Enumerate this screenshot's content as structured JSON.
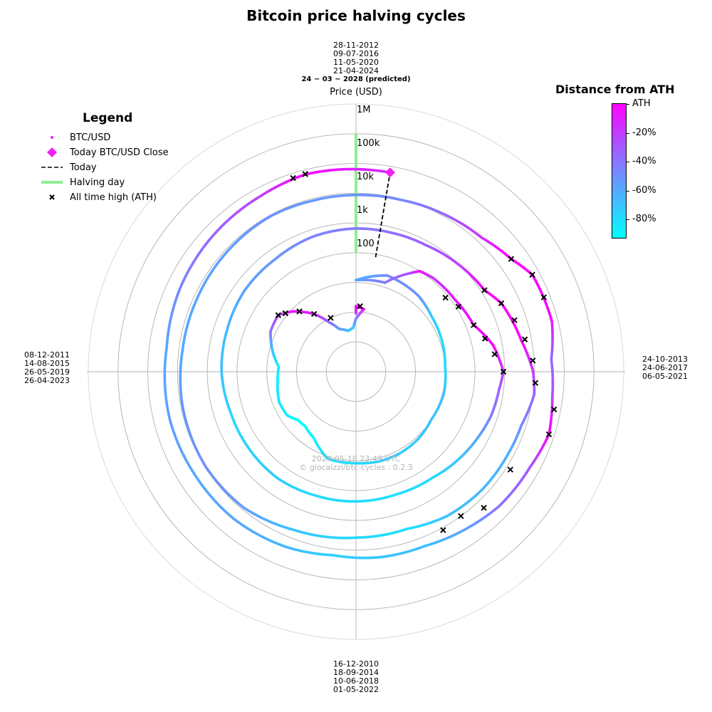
{
  "title": "Bitcoin price halving cycles",
  "date_labels": {
    "top": [
      "28-11-2012",
      "09-07-2016",
      "11-05-2020",
      "21-04-2024"
    ],
    "top_predicted": "24 − 03 − 2028 (predicted)",
    "right": [
      "24-10-2013",
      "24-06-2017",
      "06-05-2021"
    ],
    "bottom": [
      "16-12-2010",
      "18-09-2014",
      "10-06-2018",
      "01-05-2022"
    ],
    "left": [
      "08-12-2011",
      "14-08-2015",
      "26-05-2019",
      "26-04-2023"
    ]
  },
  "legend": {
    "title": "Legend",
    "items": [
      {
        "label": "BTC/USD",
        "marker": "dot",
        "color": "#ee22ee"
      },
      {
        "label": "Today BTC/USD Close",
        "marker": "diamond",
        "color": "#ee22ee"
      },
      {
        "label": "Today",
        "marker": "dashed-line",
        "color": "#000000"
      },
      {
        "label": "Halving day",
        "marker": "line",
        "color": "#90ee90"
      },
      {
        "label": "All time high (ATH)",
        "marker": "x",
        "color": "#000000"
      }
    ]
  },
  "colorbar": {
    "title": "Distance from ATH",
    "ticks": [
      "ATH",
      "-20%",
      "-40%",
      "-60%",
      "-80%"
    ],
    "tick_values": [
      0,
      -20,
      -40,
      -60,
      -80
    ],
    "min": -93,
    "max": 0,
    "colors": [
      "#00ffff",
      "#ff00ff"
    ]
  },
  "watermark": [
    "2024-05-18 23:49 UTC",
    "© giocaizzi/btc-cycles : 0.2.3"
  ],
  "chart_data": {
    "type": "scatter",
    "projection": "polar",
    "title": "Bitcoin price halving cycles",
    "radial_axis": {
      "label": "Price (USD)",
      "scale": "log",
      "tick_labels": [
        "100",
        "1k",
        "10k",
        "100k",
        "1M"
      ],
      "tick_values": [
        100,
        1000,
        10000,
        100000,
        1000000
      ],
      "range": [
        0.01,
        10000000
      ]
    },
    "angular_axis": {
      "unit": "fraction of halving cycle (clockwise from top = halving day)"
    },
    "grid": true,
    "legend_position": "upper-left",
    "halving_day": {
      "angle": 0,
      "price_range": [
        100,
        1000000
      ],
      "color": "#90ee90"
    },
    "today": {
      "angle": 0.027,
      "close": 62000,
      "date": "2024-05-18"
    },
    "series": [
      {
        "name": "BTC/USD",
        "cycles": [
          {
            "cycle": 1,
            "points": [
              {
                "angle": 0.0,
                "price": 0.9,
                "dist_ath": -30
              },
              {
                "angle": 0.0,
                "price": 1.6,
                "dist_ath": 0
              },
              {
                "angle": 0.02,
                "price": 1.3,
                "dist_ath": -5
              },
              {
                "angle": 0.0,
                "price": 0.6,
                "dist_ath": -45
              },
              {
                "angle": 0.99,
                "price": 0.3,
                "dist_ath": -70
              },
              {
                "angle": 0.97,
                "price": 0.25,
                "dist_ath": -72
              },
              {
                "angle": 0.94,
                "price": 0.35,
                "dist_ath": -60
              },
              {
                "angle": 0.92,
                "price": 0.8,
                "dist_ath": -40
              },
              {
                "angle": 0.9,
                "price": 2.5,
                "dist_ath": -15
              },
              {
                "angle": 0.87,
                "price": 9,
                "dist_ath": -5
              },
              {
                "angle": 0.85,
                "price": 17,
                "dist_ath": -25
              },
              {
                "angle": 0.82,
                "price": 15,
                "dist_ath": -40
              },
              {
                "angle": 0.79,
                "price": 8,
                "dist_ath": -70
              },
              {
                "angle": 0.76,
                "price": 4,
                "dist_ath": -85
              },
              {
                "angle": 0.73,
                "price": 4.5,
                "dist_ath": -88
              },
              {
                "angle": 0.69,
                "price": 6,
                "dist_ath": -85
              },
              {
                "angle": 0.66,
                "price": 5.5,
                "dist_ath": -87
              },
              {
                "angle": 0.64,
                "price": 3.5,
                "dist_ath": -92
              },
              {
                "angle": 0.62,
                "price": 3.2,
                "dist_ath": -93
              },
              {
                "angle": 0.59,
                "price": 4.4,
                "dist_ath": -90
              },
              {
                "angle": 0.55,
                "price": 12,
                "dist_ath": -80
              },
              {
                "angle": 0.5,
                "price": 12,
                "dist_ath": -80
              },
              {
                "angle": 0.46,
                "price": 13,
                "dist_ath": -75
              },
              {
                "angle": 0.42,
                "price": 13,
                "dist_ath": -74
              },
              {
                "angle": 0.38,
                "price": 12,
                "dist_ath": -74
              },
              {
                "angle": 0.34,
                "price": 10,
                "dist_ath": -70
              },
              {
                "angle": 0.29,
                "price": 11,
                "dist_ath": -70
              },
              {
                "angle": 0.24,
                "price": 10,
                "dist_ath": -80
              },
              {
                "angle": 0.19,
                "price": 12,
                "dist_ath": -80
              },
              {
                "angle": 0.15,
                "price": 14,
                "dist_ath": -75
              },
              {
                "angle": 0.11,
                "price": 20,
                "dist_ath": -55
              },
              {
                "angle": 0.05,
                "price": 25,
                "dist_ath": -50
              },
              {
                "angle": 0.0,
                "price": 12,
                "dist_ath": -65
              }
            ]
          },
          {
            "cycle": 2,
            "points": [
              {
                "angle": 0.0,
                "price": 12,
                "dist_ath": -60
              },
              {
                "angle": 0.05,
                "price": 14,
                "dist_ath": -45
              },
              {
                "angle": 0.08,
                "price": 60,
                "dist_ath": -30
              },
              {
                "angle": 0.09,
                "price": 100,
                "dist_ath": -5
              },
              {
                "angle": 0.11,
                "price": 120,
                "dist_ath": -20
              },
              {
                "angle": 0.15,
                "price": 130,
                "dist_ath": -10
              },
              {
                "angle": 0.19,
                "price": 180,
                "dist_ath": -5
              },
              {
                "angle": 0.22,
                "price": 500,
                "dist_ath": 0
              },
              {
                "angle": 0.25,
                "price": 900,
                "dist_ath": -20
              },
              {
                "angle": 0.27,
                "price": 700,
                "dist_ath": -35
              },
              {
                "angle": 0.3,
                "price": 600,
                "dist_ath": -45
              },
              {
                "angle": 0.33,
                "price": 450,
                "dist_ath": -60
              },
              {
                "angle": 0.36,
                "price": 350,
                "dist_ath": -70
              },
              {
                "angle": 0.4,
                "price": 250,
                "dist_ath": -78
              },
              {
                "angle": 0.45,
                "price": 220,
                "dist_ath": -82
              },
              {
                "angle": 0.5,
                "price": 230,
                "dist_ath": -80
              },
              {
                "angle": 0.55,
                "price": 240,
                "dist_ath": -80
              },
              {
                "angle": 0.6,
                "price": 280,
                "dist_ath": -75
              },
              {
                "angle": 0.65,
                "price": 270,
                "dist_ath": -76
              },
              {
                "angle": 0.7,
                "price": 270,
                "dist_ath": -78
              },
              {
                "angle": 0.75,
                "price": 330,
                "dist_ath": -70
              },
              {
                "angle": 0.8,
                "price": 360,
                "dist_ath": -68
              },
              {
                "angle": 0.85,
                "price": 430,
                "dist_ath": -60
              },
              {
                "angle": 0.9,
                "price": 450,
                "dist_ath": -55
              },
              {
                "angle": 0.95,
                "price": 580,
                "dist_ath": -48
              },
              {
                "angle": 1.0,
                "price": 650,
                "dist_ath": -45
              }
            ]
          },
          {
            "cycle": 3,
            "points": [
              {
                "angle": 0.0,
                "price": 650,
                "dist_ath": -45
              },
              {
                "angle": 0.04,
                "price": 660,
                "dist_ath": -40
              },
              {
                "angle": 0.08,
                "price": 720,
                "dist_ath": -35
              },
              {
                "angle": 0.12,
                "price": 960,
                "dist_ath": -25
              },
              {
                "angle": 0.16,
                "price": 1300,
                "dist_ath": 0
              },
              {
                "angle": 0.18,
                "price": 2500,
                "dist_ath": 0
              },
              {
                "angle": 0.22,
                "price": 4500,
                "dist_ath": 0
              },
              {
                "angle": 0.25,
                "price": 9000,
                "dist_ath": -20
              },
              {
                "angle": 0.27,
                "price": 11000,
                "dist_ath": -35
              },
              {
                "angle": 0.3,
                "price": 7000,
                "dist_ath": -50
              },
              {
                "angle": 0.33,
                "price": 6500,
                "dist_ath": -65
              },
              {
                "angle": 0.37,
                "price": 6400,
                "dist_ath": -67
              },
              {
                "angle": 0.41,
                "price": 5500,
                "dist_ath": -70
              },
              {
                "angle": 0.45,
                "price": 3600,
                "dist_ath": -82
              },
              {
                "angle": 0.5,
                "price": 3800,
                "dist_ath": -80
              },
              {
                "angle": 0.56,
                "price": 5200,
                "dist_ath": -72
              },
              {
                "angle": 0.61,
                "price": 8500,
                "dist_ath": -58
              },
              {
                "angle": 0.66,
                "price": 9500,
                "dist_ath": -52
              },
              {
                "angle": 0.72,
                "price": 8800,
                "dist_ath": -55
              },
              {
                "angle": 0.77,
                "price": 7500,
                "dist_ath": -62
              },
              {
                "angle": 0.82,
                "price": 7600,
                "dist_ath": -61
              },
              {
                "angle": 0.87,
                "price": 8300,
                "dist_ath": -58
              },
              {
                "angle": 0.92,
                "price": 9200,
                "dist_ath": -53
              },
              {
                "angle": 0.96,
                "price": 8500,
                "dist_ath": -56
              },
              {
                "angle": 1.0,
                "price": 8700,
                "dist_ath": -55
              }
            ]
          },
          {
            "cycle": 4,
            "points": [
              {
                "angle": 0.0,
                "price": 8700,
                "dist_ath": -55
              },
              {
                "angle": 0.04,
                "price": 9300,
                "dist_ath": -50
              },
              {
                "angle": 0.08,
                "price": 11500,
                "dist_ath": -40
              },
              {
                "angle": 0.12,
                "price": 15000,
                "dist_ath": -20
              },
              {
                "angle": 0.15,
                "price": 28000,
                "dist_ath": 0
              },
              {
                "angle": 0.17,
                "price": 58000,
                "dist_ath": 0
              },
              {
                "angle": 0.21,
                "price": 63000,
                "dist_ath": -5
              },
              {
                "angle": 0.24,
                "price": 38000,
                "dist_ath": -40
              },
              {
                "angle": 0.27,
                "price": 45000,
                "dist_ath": -28
              },
              {
                "angle": 0.3,
                "price": 66000,
                "dist_ath": 0
              },
              {
                "angle": 0.33,
                "price": 47000,
                "dist_ath": -30
              },
              {
                "angle": 0.37,
                "price": 40000,
                "dist_ath": -42
              },
              {
                "angle": 0.4,
                "price": 29000,
                "dist_ath": -57
              },
              {
                "angle": 0.44,
                "price": 20000,
                "dist_ath": -70
              },
              {
                "angle": 0.48,
                "price": 19500,
                "dist_ath": -72
              },
              {
                "angle": 0.52,
                "price": 16500,
                "dist_ath": -76
              },
              {
                "angle": 0.56,
                "price": 22000,
                "dist_ath": -68
              },
              {
                "angle": 0.61,
                "price": 27000,
                "dist_ath": -61
              },
              {
                "angle": 0.66,
                "price": 27000,
                "dist_ath": -61
              },
              {
                "angle": 0.71,
                "price": 29000,
                "dist_ath": -58
              },
              {
                "angle": 0.77,
                "price": 26000,
                "dist_ath": -62
              },
              {
                "angle": 0.82,
                "price": 35000,
                "dist_ath": -50
              },
              {
                "angle": 0.87,
                "price": 43000,
                "dist_ath": -38
              },
              {
                "angle": 0.92,
                "price": 52000,
                "dist_ath": -25
              },
              {
                "angle": 0.96,
                "price": 70000,
                "dist_ath": 0
              },
              {
                "angle": 1.0,
                "price": 64000,
                "dist_ath": -12
              }
            ]
          },
          {
            "cycle": 5,
            "points": [
              {
                "angle": 0.0,
                "price": 64000,
                "dist_ath": -12
              },
              {
                "angle": 0.01,
                "price": 63000,
                "dist_ath": -14
              },
              {
                "angle": 0.027,
                "price": 62000,
                "dist_ath": -15
              }
            ]
          }
        ]
      }
    ],
    "ath_points": [
      {
        "angle": 0.01,
        "price": 1.6
      },
      {
        "angle": 0.93,
        "price": 1.0
      },
      {
        "angle": 0.9,
        "price": 2.5
      },
      {
        "angle": 0.88,
        "price": 6
      },
      {
        "angle": 0.86,
        "price": 12
      },
      {
        "angle": 0.85,
        "price": 17
      },
      {
        "angle": 0.14,
        "price": 80
      },
      {
        "angle": 0.16,
        "price": 120
      },
      {
        "angle": 0.19,
        "price": 180
      },
      {
        "angle": 0.21,
        "price": 300
      },
      {
        "angle": 0.23,
        "price": 500
      },
      {
        "angle": 0.25,
        "price": 900
      },
      {
        "angle": 0.16,
        "price": 1300
      },
      {
        "angle": 0.18,
        "price": 2500
      },
      {
        "angle": 0.2,
        "price": 4000
      },
      {
        "angle": 0.22,
        "price": 6000
      },
      {
        "angle": 0.24,
        "price": 9000
      },
      {
        "angle": 0.26,
        "price": 11000
      },
      {
        "angle": 0.34,
        "price": 14000
      },
      {
        "angle": 0.38,
        "price": 19000
      },
      {
        "angle": 0.4,
        "price": 10000
      },
      {
        "angle": 0.42,
        "price": 12000
      },
      {
        "angle": 0.15,
        "price": 28000
      },
      {
        "angle": 0.17,
        "price": 58000
      },
      {
        "angle": 0.19,
        "price": 62000
      },
      {
        "angle": 0.28,
        "price": 60000
      },
      {
        "angle": 0.3,
        "price": 66000
      },
      {
        "angle": 0.95,
        "price": 70000
      },
      {
        "angle": 0.96,
        "price": 72000
      }
    ]
  }
}
